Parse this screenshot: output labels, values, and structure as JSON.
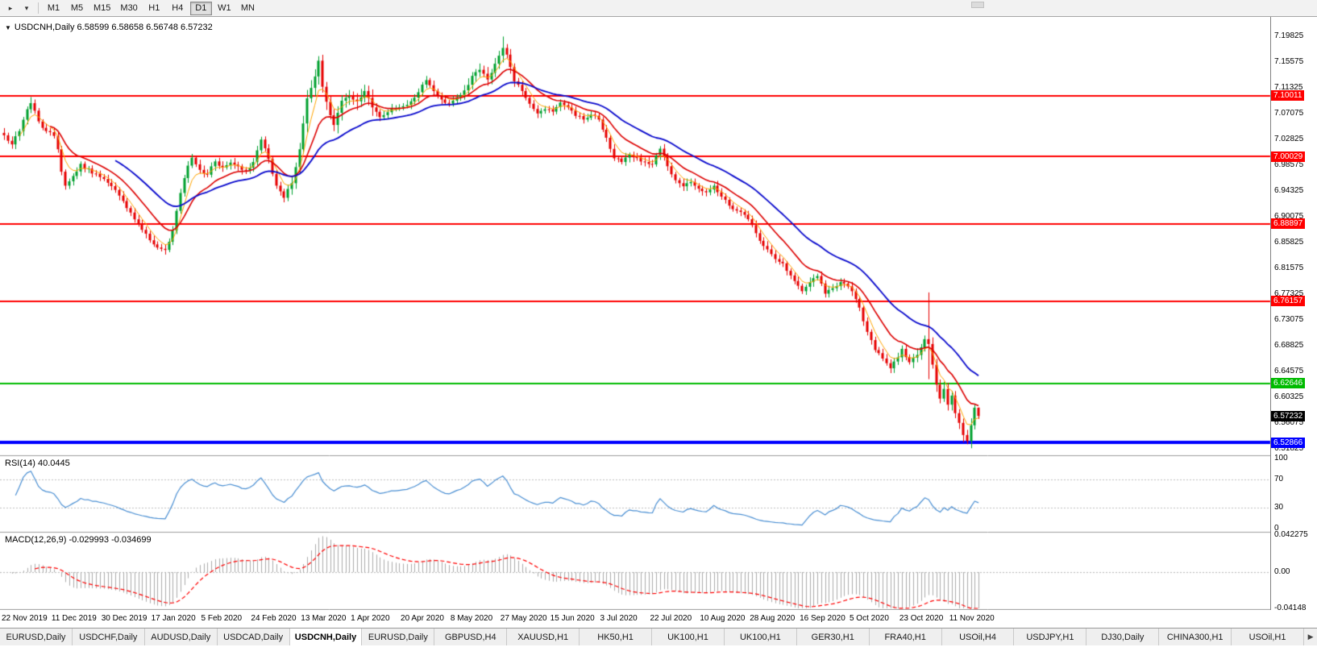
{
  "toolbar": {
    "chart_icon": "▸",
    "dropdown_icon": "▾",
    "timeframes": [
      "M1",
      "M5",
      "M15",
      "M30",
      "H1",
      "H4",
      "D1",
      "W1",
      "MN"
    ],
    "active_timeframe": "D1"
  },
  "symbol_header": {
    "icon": "▼",
    "text": "USDCNH,Daily 6.58599 6.58658 6.56748 6.57232"
  },
  "rsi": {
    "label": "RSI(14) 40.0445",
    "axis": [
      {
        "text": "100",
        "value": 100
      },
      {
        "text": "70",
        "value": 70
      },
      {
        "text": "30",
        "value": 30
      },
      {
        "text": "0",
        "value": 0
      }
    ],
    "level_lines": [
      70,
      30
    ]
  },
  "macd": {
    "label": "MACD(12,26,9) -0.029993 -0.034699",
    "axis": [
      {
        "text": "0.042275",
        "value": 0.042275
      },
      {
        "text": "0.00",
        "value": 0
      },
      {
        "text": "-0.04148",
        "value": -0.04148
      }
    ]
  },
  "tabs": {
    "items": [
      "EURUSD,Daily",
      "USDCHF,Daily",
      "AUDUSD,Daily",
      "USDCAD,Daily",
      "USDCNH,Daily",
      "EURUSD,Daily",
      "GBPUSD,H4",
      "XAUUSD,H1",
      "HK50,H1",
      "UK100,H1",
      "UK100,H1",
      "GER30,H1",
      "FRA40,H1",
      "USOil,H4",
      "USDJPY,H1",
      "DJ30,Daily",
      "CHINA300,H1",
      "USOil,H1"
    ],
    "active_index": 4,
    "scroll_icon": "▶"
  },
  "chart_data": {
    "type": "candlestick",
    "symbol": "USDCNH",
    "timeframe": "Daily",
    "last_bar": {
      "open": 6.58599,
      "high": 6.58658,
      "low": 6.56748,
      "close": 6.57232
    },
    "current_price": 6.57232,
    "y_range": {
      "top": 7.23013,
      "bottom": 6.50759
    },
    "y_ticks": [
      7.19825,
      7.15575,
      7.11325,
      7.07075,
      7.02825,
      6.98575,
      6.94325,
      6.90075,
      6.85825,
      6.81575,
      6.77325,
      6.73075,
      6.68825,
      6.64575,
      6.60325,
      6.56075,
      6.51825
    ],
    "h_lines": [
      {
        "price": 7.10011,
        "color": "#FF0000",
        "width": 2
      },
      {
        "price": 7.00029,
        "color": "#FF0000",
        "width": 2
      },
      {
        "price": 6.88897,
        "color": "#FF0000",
        "width": 2
      },
      {
        "price": 6.76157,
        "color": "#FF0000",
        "width": 2
      },
      {
        "price": 6.62646,
        "color": "#00BB00",
        "width": 2
      },
      {
        "price": 6.52866,
        "color": "#0000FF",
        "width": 4
      }
    ],
    "x_labels": [
      {
        "text": "22 Nov 2019",
        "day": 0
      },
      {
        "text": "11 Dec 2019",
        "day": 13
      },
      {
        "text": "30 Dec 2019",
        "day": 26
      },
      {
        "text": "17 Jan 2020",
        "day": 39
      },
      {
        "text": "5 Feb 2020",
        "day": 52
      },
      {
        "text": "24 Feb 2020",
        "day": 65
      },
      {
        "text": "13 Mar 2020",
        "day": 78
      },
      {
        "text": "1 Apr 2020",
        "day": 91
      },
      {
        "text": "20 Apr 2020",
        "day": 104
      },
      {
        "text": "8 May 2020",
        "day": 117
      },
      {
        "text": "27 May 2020",
        "day": 130
      },
      {
        "text": "15 Jun 2020",
        "day": 143
      },
      {
        "text": "3 Jul 2020",
        "day": 156
      },
      {
        "text": "22 Jul 2020",
        "day": 169
      },
      {
        "text": "10 Aug 2020",
        "day": 182
      },
      {
        "text": "28 Aug 2020",
        "day": 195
      },
      {
        "text": "16 Sep 2020",
        "day": 208
      },
      {
        "text": "5 Oct 2020",
        "day": 221
      },
      {
        "text": "23 Oct 2020",
        "day": 234
      },
      {
        "text": "11 Nov 2020",
        "day": 247
      }
    ],
    "candles": {
      "count": 255,
      "seed": 7,
      "noise": 0.003,
      "wick_base": 0.0035,
      "wick_rand": 0.0045,
      "up_color": "#00A12F",
      "down_color": "#E60000",
      "high_vol_ranges": [
        [
          75,
          96,
          1.9
        ],
        [
          120,
          133,
          1.4
        ],
        [
          237,
          254,
          1.5
        ]
      ],
      "anchors": [
        [
          0,
          7.035
        ],
        [
          2,
          7.02
        ],
        [
          4,
          7.042
        ],
        [
          6,
          7.078
        ],
        [
          7,
          7.088
        ],
        [
          9,
          7.058
        ],
        [
          11,
          7.042
        ],
        [
          13,
          7.034
        ],
        [
          14,
          7.012
        ],
        [
          15,
          6.975
        ],
        [
          16,
          6.952
        ],
        [
          18,
          6.968
        ],
        [
          20,
          6.988
        ],
        [
          23,
          6.972
        ],
        [
          26,
          6.963
        ],
        [
          29,
          6.945
        ],
        [
          32,
          6.915
        ],
        [
          35,
          6.888
        ],
        [
          38,
          6.862
        ],
        [
          40,
          6.85
        ],
        [
          42,
          6.846
        ],
        [
          44,
          6.878
        ],
        [
          46,
          6.94
        ],
        [
          48,
          6.985
        ],
        [
          49,
          6.998
        ],
        [
          51,
          6.978
        ],
        [
          53,
          6.97
        ],
        [
          55,
          6.992
        ],
        [
          57,
          6.982
        ],
        [
          59,
          6.99
        ],
        [
          61,
          6.984
        ],
        [
          63,
          6.977
        ],
        [
          65,
          6.991
        ],
        [
          67,
          7.028
        ],
        [
          69,
          6.996
        ],
        [
          71,
          6.952
        ],
        [
          73,
          6.932
        ],
        [
          75,
          6.956
        ],
        [
          77,
          7.012
        ],
        [
          79,
          7.096
        ],
        [
          81,
          7.132
        ],
        [
          82,
          7.158
        ],
        [
          83,
          7.115
        ],
        [
          85,
          7.068
        ],
        [
          86,
          7.052
        ],
        [
          88,
          7.092
        ],
        [
          90,
          7.099
        ],
        [
          92,
          7.091
        ],
        [
          94,
          7.108
        ],
        [
          96,
          7.081
        ],
        [
          98,
          7.065
        ],
        [
          100,
          7.073
        ],
        [
          102,
          7.079
        ],
        [
          104,
          7.083
        ],
        [
          106,
          7.091
        ],
        [
          108,
          7.106
        ],
        [
          110,
          7.126
        ],
        [
          112,
          7.108
        ],
        [
          114,
          7.094
        ],
        [
          116,
          7.087
        ],
        [
          118,
          7.098
        ],
        [
          120,
          7.109
        ],
        [
          122,
          7.133
        ],
        [
          124,
          7.143
        ],
        [
          126,
          7.127
        ],
        [
          128,
          7.153
        ],
        [
          130,
          7.179
        ],
        [
          131,
          7.168
        ],
        [
          133,
          7.124
        ],
        [
          135,
          7.108
        ],
        [
          137,
          7.087
        ],
        [
          139,
          7.071
        ],
        [
          141,
          7.078
        ],
        [
          143,
          7.074
        ],
        [
          145,
          7.089
        ],
        [
          147,
          7.081
        ],
        [
          149,
          7.067
        ],
        [
          151,
          7.061
        ],
        [
          153,
          7.069
        ],
        [
          155,
          7.061
        ],
        [
          157,
          7.031
        ],
        [
          159,
          6.997
        ],
        [
          161,
          6.991
        ],
        [
          163,
          7.003
        ],
        [
          165,
          6.998
        ],
        [
          167,
          6.991
        ],
        [
          169,
          6.987
        ],
        [
          171,
          7.013
        ],
        [
          173,
          6.984
        ],
        [
          175,
          6.961
        ],
        [
          177,
          6.951
        ],
        [
          179,
          6.958
        ],
        [
          181,
          6.947
        ],
        [
          183,
          6.941
        ],
        [
          185,
          6.952
        ],
        [
          187,
          6.934
        ],
        [
          189,
          6.919
        ],
        [
          191,
          6.911
        ],
        [
          193,
          6.904
        ],
        [
          195,
          6.887
        ],
        [
          197,
          6.861
        ],
        [
          199,
          6.847
        ],
        [
          201,
          6.831
        ],
        [
          203,
          6.824
        ],
        [
          205,
          6.804
        ],
        [
          207,
          6.787
        ],
        [
          208,
          6.778
        ],
        [
          210,
          6.793
        ],
        [
          212,
          6.803
        ],
        [
          214,
          6.774
        ],
        [
          216,
          6.783
        ],
        [
          218,
          6.793
        ],
        [
          220,
          6.786
        ],
        [
          221,
          6.778
        ],
        [
          223,
          6.751
        ],
        [
          225,
          6.711
        ],
        [
          227,
          6.681
        ],
        [
          229,
          6.667
        ],
        [
          231,
          6.651
        ],
        [
          233,
          6.669
        ],
        [
          234,
          6.683
        ],
        [
          236,
          6.661
        ],
        [
          238,
          6.673
        ],
        [
          240,
          6.699
        ],
        [
          241,
          6.691
        ],
        [
          242,
          6.657
        ],
        [
          243,
          6.624
        ],
        [
          244,
          6.601
        ],
        [
          245,
          6.617
        ],
        [
          246,
          6.591
        ],
        [
          247,
          6.606
        ],
        [
          248,
          6.577
        ],
        [
          249,
          6.561
        ],
        [
          250,
          6.541
        ],
        [
          251,
          6.531
        ],
        [
          252,
          6.557
        ],
        [
          253,
          6.586
        ],
        [
          254,
          6.57232
        ]
      ],
      "special_bars": {
        "7": {
          "high": 7.098
        },
        "82": {
          "high": 7.1655
        },
        "130": {
          "high": 7.1978
        },
        "241": {
          "high": 6.776,
          "low": 6.633
        },
        "251": {
          "low": 6.5258
        }
      }
    },
    "moving_averages": [
      {
        "period": 5,
        "color": "#FFA500",
        "width": 1
      },
      {
        "period": 13,
        "color": "#DD0000",
        "width": 1.6
      },
      {
        "period": 30,
        "color": "#0A0ACD",
        "width": 1.8
      }
    ],
    "rsi_indicator": {
      "period": 14,
      "color": "#4A8FD3",
      "width": 1.2,
      "current": 40.0445
    },
    "macd_indicator": {
      "fast": 12,
      "slow": 26,
      "signal": 9,
      "hist_color": "#ABABAB",
      "signal_color": "#FF0000",
      "value": -0.029993,
      "signal_value": -0.034699
    }
  }
}
